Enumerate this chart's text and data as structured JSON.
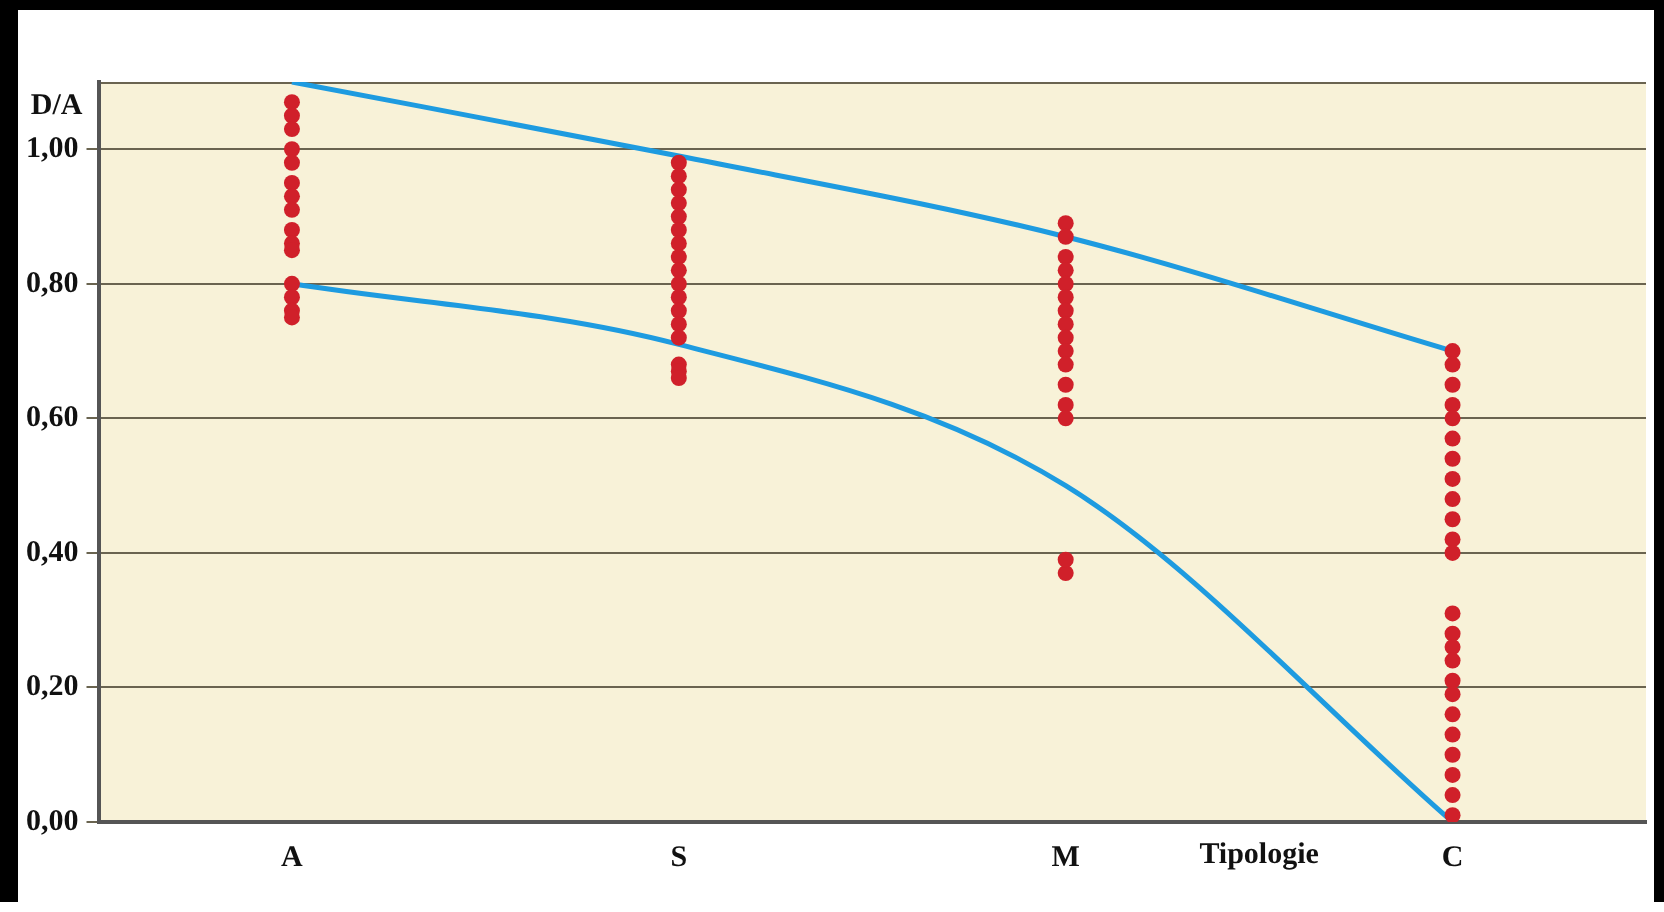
{
  "chart_data": {
    "type": "scatter",
    "ylabel": "D/A",
    "xlabel": "Tipologie",
    "categories": [
      "A",
      "S",
      "M",
      "C"
    ],
    "ylim": [
      0,
      1.1
    ],
    "yticks": [
      {
        "value": 0,
        "label": "0,00"
      },
      {
        "value": 0.2,
        "label": "0,20"
      },
      {
        "value": 0.4,
        "label": "0,40"
      },
      {
        "value": 0.6,
        "label": "0,60"
      },
      {
        "value": 0.8,
        "label": "0,80"
      },
      {
        "value": 1,
        "label": "1,00"
      }
    ],
    "grid": "y",
    "legend": false,
    "marker": "circle",
    "series": [
      {
        "type": "scatter",
        "color": "#d0202a",
        "x": [
          "A",
          "A",
          "A",
          "A",
          "A",
          "A",
          "A",
          "A",
          "A",
          "A",
          "A",
          "A",
          "A",
          "A",
          "A"
        ],
        "values": [
          1.07,
          1.05,
          1.03,
          1.0,
          0.98,
          0.95,
          0.93,
          0.91,
          0.88,
          0.86,
          0.85,
          0.8,
          0.78,
          0.76,
          0.75
        ]
      },
      {
        "type": "scatter",
        "color": "#d0202a",
        "x": [
          "S",
          "S",
          "S",
          "S",
          "S",
          "S",
          "S",
          "S",
          "S",
          "S",
          "S",
          "S",
          "S",
          "S",
          "S",
          "S",
          "S"
        ],
        "values": [
          0.98,
          0.96,
          0.94,
          0.92,
          0.9,
          0.88,
          0.86,
          0.84,
          0.82,
          0.8,
          0.78,
          0.76,
          0.74,
          0.72,
          0.68,
          0.67,
          0.66
        ]
      },
      {
        "type": "scatter",
        "color": "#d0202a",
        "x": [
          "M",
          "M",
          "M",
          "M",
          "M",
          "M",
          "M",
          "M",
          "M",
          "M",
          "M",
          "M",
          "M",
          "M",
          "M"
        ],
        "values": [
          0.89,
          0.87,
          0.84,
          0.82,
          0.8,
          0.78,
          0.76,
          0.74,
          0.72,
          0.7,
          0.68,
          0.65,
          0.62,
          0.6,
          0.39
        ]
      },
      {
        "type": "scatter",
        "color": "#d0202a",
        "x": [
          "M",
          "C",
          "C",
          "C",
          "C",
          "C",
          "C",
          "C",
          "C",
          "C",
          "C",
          "C",
          "C",
          "C",
          "C",
          "C",
          "C",
          "C",
          "C",
          "C",
          "C",
          "C",
          "C",
          "C",
          "C"
        ],
        "values": [
          0.37,
          0.7,
          0.68,
          0.65,
          0.62,
          0.6,
          0.57,
          0.54,
          0.51,
          0.48,
          0.45,
          0.42,
          0.4,
          0.31,
          0.28,
          0.26,
          0.24,
          0.21,
          0.19,
          0.16,
          0.13,
          0.1,
          0.07,
          0.04,
          0.01
        ]
      },
      {
        "type": "line",
        "color": "#1e9be0",
        "marker": "none",
        "values": [
          1.1,
          0.99,
          0.87,
          0.7
        ]
      },
      {
        "type": "line",
        "color": "#1e9be0",
        "marker": "none",
        "values": [
          0.8,
          0.71,
          0.5,
          0.0
        ]
      }
    ]
  }
}
